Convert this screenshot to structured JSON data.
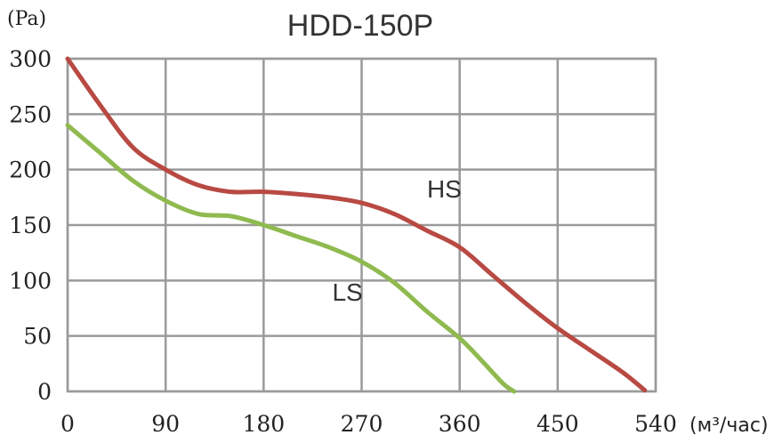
{
  "chart_data": {
    "type": "line",
    "title": "HDD-150P",
    "ylabel": "(Pa)",
    "xlabel": "(м³/час)",
    "xlim": [
      0,
      540
    ],
    "ylim": [
      0,
      300
    ],
    "x_ticks": [
      0,
      90,
      180,
      270,
      360,
      450,
      540
    ],
    "y_ticks": [
      0,
      50,
      100,
      150,
      200,
      250,
      300
    ],
    "grid": true,
    "series": [
      {
        "name": "HS",
        "color": "#b84a43",
        "points": [
          [
            0,
            300
          ],
          [
            30,
            258
          ],
          [
            60,
            220
          ],
          [
            90,
            200
          ],
          [
            120,
            186
          ],
          [
            150,
            180
          ],
          [
            180,
            180
          ],
          [
            210,
            178
          ],
          [
            240,
            175
          ],
          [
            270,
            170
          ],
          [
            300,
            160
          ],
          [
            330,
            145
          ],
          [
            360,
            130
          ],
          [
            390,
            105
          ],
          [
            420,
            80
          ],
          [
            450,
            57
          ],
          [
            480,
            37
          ],
          [
            510,
            17
          ],
          [
            530,
            1
          ]
        ]
      },
      {
        "name": "LS",
        "color": "#8fba4f",
        "points": [
          [
            0,
            240
          ],
          [
            30,
            215
          ],
          [
            60,
            190
          ],
          [
            90,
            172
          ],
          [
            120,
            160
          ],
          [
            150,
            158
          ],
          [
            180,
            150
          ],
          [
            210,
            140
          ],
          [
            240,
            130
          ],
          [
            270,
            117
          ],
          [
            300,
            98
          ],
          [
            330,
            72
          ],
          [
            360,
            48
          ],
          [
            380,
            28
          ],
          [
            400,
            7
          ],
          [
            410,
            0
          ]
        ]
      }
    ],
    "annotations": [
      {
        "text": "HS",
        "x": 330,
        "y": 175
      },
      {
        "text": "LS",
        "x": 243,
        "y": 82
      }
    ]
  }
}
